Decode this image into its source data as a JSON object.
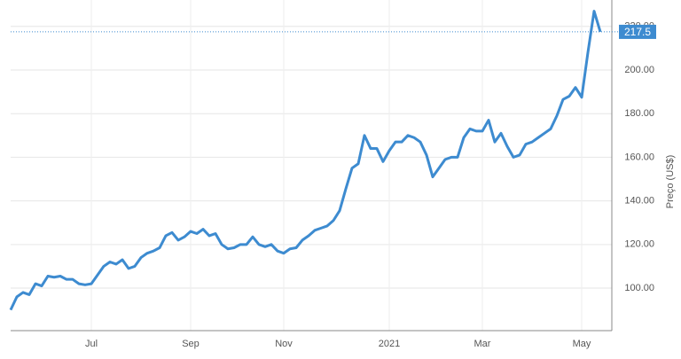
{
  "chart_data": {
    "type": "line",
    "categories": [
      null,
      null,
      null,
      null,
      null,
      null,
      null,
      null,
      null,
      null,
      null,
      null,
      null,
      "Jul",
      null,
      null,
      null,
      null,
      null,
      null,
      null,
      null,
      null,
      null,
      null,
      null,
      null,
      null,
      null,
      "Sep",
      null,
      null,
      null,
      null,
      null,
      null,
      null,
      null,
      null,
      null,
      null,
      null,
      null,
      null,
      "Nov",
      null,
      null,
      null,
      null,
      null,
      null,
      null,
      null,
      null,
      null,
      null,
      null,
      null,
      null,
      null,
      null,
      "2021",
      null,
      null,
      null,
      null,
      null,
      null,
      null,
      null,
      null,
      null,
      null,
      null,
      null,
      null,
      "Mar",
      null,
      null,
      null,
      null,
      null,
      null,
      null,
      null,
      null,
      null,
      null,
      null,
      null,
      null,
      null,
      "May",
      null,
      null,
      null
    ],
    "values": [
      90,
      96,
      98,
      97,
      102,
      101,
      105.5,
      105,
      105.5,
      104,
      104,
      102,
      101.5,
      102,
      106,
      110,
      112,
      111,
      113,
      109,
      110,
      114,
      116,
      117,
      118.5,
      124,
      125.5,
      122,
      123.5,
      126,
      125,
      127,
      124,
      125,
      120,
      118,
      118.5,
      120,
      120,
      123.5,
      120,
      119,
      120,
      117,
      116,
      118,
      118.5,
      122,
      124,
      126.5,
      127.5,
      128.5,
      131,
      135.5,
      145.5,
      155,
      157,
      170,
      164,
      164,
      158,
      163,
      167,
      167,
      170,
      169,
      167,
      161,
      151,
      155,
      159,
      160,
      160,
      169,
      173,
      172,
      172,
      177,
      167,
      171,
      165,
      160,
      161,
      166,
      167,
      169,
      171,
      173,
      179,
      186.5,
      188,
      192,
      187.5,
      208,
      227,
      217.5
    ],
    "color": "#3d8bd0",
    "y_label": "Preço (US$)",
    "ylim": [
      80.5,
      232.1
    ],
    "yticks": [
      {
        "value": 100,
        "label": "100.00"
      },
      {
        "value": 120,
        "label": "120.00"
      },
      {
        "value": 140,
        "label": "140.00"
      },
      {
        "value": 160,
        "label": "160.00"
      },
      {
        "value": 180,
        "label": "180.00"
      },
      {
        "value": 200,
        "label": "200.00"
      },
      {
        "value": 220,
        "label": "220.00"
      }
    ],
    "grid": true
  }
}
